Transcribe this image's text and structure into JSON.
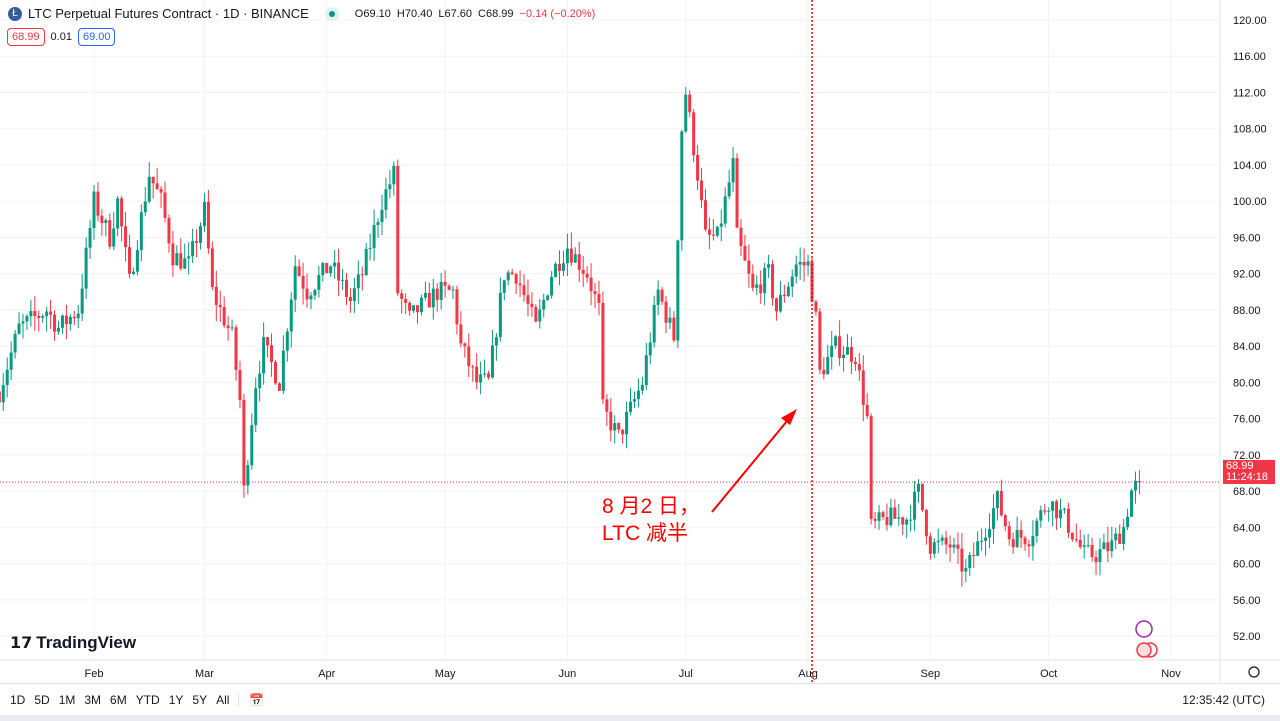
{
  "header": {
    "symbol_title": "LTC Perpetual Futures Contract · 1D · BINANCE",
    "open": "O69.10",
    "high": "H70.40",
    "low": "L67.60",
    "close": "C68.99",
    "change": "−0.14 (−0.20%)",
    "bid": "68.99",
    "spread": "0.01",
    "ask": "69.00"
  },
  "current_price": {
    "price": "68.99",
    "countdown": "11:24:18"
  },
  "annotation": {
    "line1": "8 月2 日，",
    "line2": "LTC 减半",
    "event_date": "2023-08-02",
    "color": "#ff0000"
  },
  "brand": "TradingView",
  "toolbar": {
    "ranges": [
      "1D",
      "5D",
      "1M",
      "3M",
      "6M",
      "YTD",
      "1Y",
      "5Y",
      "All"
    ],
    "clock": "12:35:42 (UTC)"
  },
  "colors": {
    "up": "#089981",
    "down": "#f23645"
  },
  "chart_data": {
    "type": "candlestick",
    "title": "LTC Perpetual Futures Contract · 1D · BINANCE",
    "x_ticks": [
      "Feb",
      "Mar",
      "Apr",
      "May",
      "Jun",
      "Jul",
      "Aug",
      "Sep",
      "Oct",
      "Nov"
    ],
    "x_tick_dates": [
      "2023-02-01",
      "2023-03-01",
      "2023-04-01",
      "2023-05-01",
      "2023-06-01",
      "2023-07-01",
      "2023-08-01",
      "2023-09-01",
      "2023-10-01",
      "2023-11-01"
    ],
    "y_ticks": [
      52,
      56,
      60,
      64,
      68,
      72,
      76,
      80,
      84,
      88,
      92,
      96,
      100,
      104,
      108,
      112,
      116,
      120
    ],
    "ylim": [
      50,
      121
    ],
    "grid": true,
    "close_samples": [
      [
        "2023-01-08",
        79
      ],
      [
        "2023-01-13",
        86
      ],
      [
        "2023-01-20",
        88
      ],
      [
        "2023-01-23",
        86
      ],
      [
        "2023-01-28",
        88
      ],
      [
        "2023-02-01",
        100
      ],
      [
        "2023-02-05",
        96
      ],
      [
        "2023-02-07",
        100
      ],
      [
        "2023-02-10",
        91
      ],
      [
        "2023-02-15",
        103
      ],
      [
        "2023-02-18",
        100
      ],
      [
        "2023-02-21",
        94
      ],
      [
        "2023-02-25",
        93
      ],
      [
        "2023-03-01",
        99
      ],
      [
        "2023-03-03",
        90
      ],
      [
        "2023-03-08",
        85
      ],
      [
        "2023-03-10",
        78
      ],
      [
        "2023-03-11",
        68
      ],
      [
        "2023-03-14",
        80
      ],
      [
        "2023-03-16",
        84
      ],
      [
        "2023-03-20",
        80
      ],
      [
        "2023-03-24",
        93
      ],
      [
        "2023-03-27",
        90
      ],
      [
        "2023-04-02",
        93
      ],
      [
        "2023-04-07",
        89
      ],
      [
        "2023-04-10",
        92
      ],
      [
        "2023-04-15",
        100
      ],
      [
        "2023-04-18",
        103
      ],
      [
        "2023-04-19",
        90
      ],
      [
        "2023-04-22",
        87
      ],
      [
        "2023-04-24",
        88
      ],
      [
        "2023-04-29",
        90
      ],
      [
        "2023-05-03",
        90
      ],
      [
        "2023-05-05",
        84
      ],
      [
        "2023-05-09",
        80
      ],
      [
        "2023-05-12",
        80
      ],
      [
        "2023-05-16",
        92
      ],
      [
        "2023-05-19",
        92
      ],
      [
        "2023-05-24",
        86
      ],
      [
        "2023-05-28",
        92
      ],
      [
        "2023-06-01",
        95
      ],
      [
        "2023-06-06",
        92
      ],
      [
        "2023-06-09",
        88
      ],
      [
        "2023-06-10",
        77
      ],
      [
        "2023-06-14",
        74
      ],
      [
        "2023-06-18",
        78
      ],
      [
        "2023-06-20",
        80
      ],
      [
        "2023-06-24",
        90
      ],
      [
        "2023-06-28",
        85
      ],
      [
        "2023-06-30",
        108
      ],
      [
        "2023-07-01",
        112
      ],
      [
        "2023-07-04",
        103
      ],
      [
        "2023-07-06",
        96
      ],
      [
        "2023-07-09",
        96
      ],
      [
        "2023-07-13",
        104
      ],
      [
        "2023-07-14",
        96
      ],
      [
        "2023-07-18",
        90
      ],
      [
        "2023-07-22",
        92
      ],
      [
        "2023-07-24",
        88
      ],
      [
        "2023-07-29",
        93
      ],
      [
        "2023-08-01",
        93
      ],
      [
        "2023-08-03",
        87
      ],
      [
        "2023-08-04",
        81
      ],
      [
        "2023-08-08",
        84
      ],
      [
        "2023-08-13",
        83
      ],
      [
        "2023-08-16",
        76
      ],
      [
        "2023-08-17",
        64
      ],
      [
        "2023-08-21",
        65
      ],
      [
        "2023-08-26",
        65
      ],
      [
        "2023-08-29",
        68
      ],
      [
        "2023-09-01",
        62
      ],
      [
        "2023-09-06",
        62
      ],
      [
        "2023-09-10",
        59
      ],
      [
        "2023-09-14",
        63
      ],
      [
        "2023-09-18",
        67
      ],
      [
        "2023-09-21",
        63
      ],
      [
        "2023-09-26",
        63
      ],
      [
        "2023-10-01",
        67
      ],
      [
        "2023-10-05",
        65
      ],
      [
        "2023-10-10",
        61
      ],
      [
        "2023-10-13",
        61
      ],
      [
        "2023-10-17",
        62
      ],
      [
        "2023-10-20",
        64
      ],
      [
        "2023-10-22",
        68
      ],
      [
        "2023-10-24",
        68.99
      ]
    ],
    "last": {
      "open": 69.1,
      "high": 70.4,
      "low": 67.6,
      "close": 68.99
    }
  }
}
